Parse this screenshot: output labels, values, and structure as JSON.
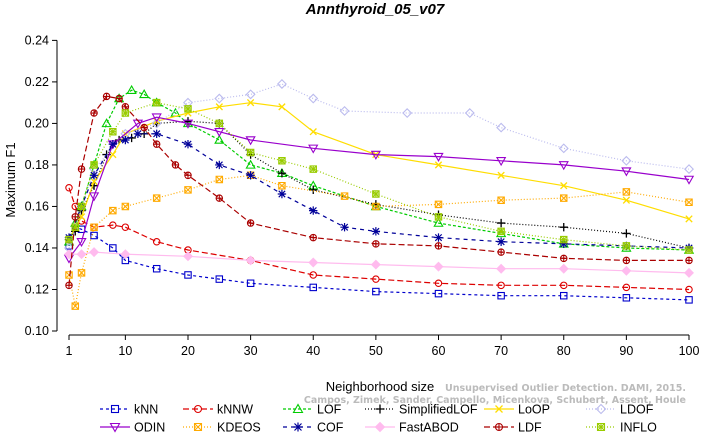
{
  "chart_data": {
    "type": "line",
    "title": "Annthyroid_05_v07",
    "xlabel": "Neighborhood size",
    "ylabel": "Maximum F1",
    "xlim": [
      1,
      100
    ],
    "ylim": [
      0.1,
      0.245
    ],
    "xticks": [
      1,
      10,
      20,
      30,
      40,
      50,
      60,
      70,
      80,
      90,
      100
    ],
    "yticks": [
      0.1,
      0.12,
      0.14,
      0.16,
      0.18,
      0.2,
      0.22,
      0.24
    ],
    "legend_position": "bottom",
    "series": [
      {
        "name": "kNN",
        "color": "#0000cc",
        "marker": "square",
        "dash": "3,3",
        "points": [
          [
            1,
            0.141
          ],
          [
            2,
            0.15
          ],
          [
            3,
            0.149
          ],
          [
            5,
            0.146
          ],
          [
            8,
            0.14
          ],
          [
            10,
            0.134
          ],
          [
            15,
            0.13
          ],
          [
            20,
            0.127
          ],
          [
            25,
            0.125
          ],
          [
            30,
            0.123
          ],
          [
            40,
            0.121
          ],
          [
            50,
            0.119
          ],
          [
            60,
            0.118
          ],
          [
            70,
            0.117
          ],
          [
            80,
            0.117
          ],
          [
            90,
            0.116
          ],
          [
            100,
            0.115
          ]
        ]
      },
      {
        "name": "kNNW",
        "color": "#dd0000",
        "marker": "circle",
        "dash": "6,3",
        "points": [
          [
            1,
            0.169
          ],
          [
            2,
            0.16
          ],
          [
            3,
            0.153
          ],
          [
            5,
            0.15
          ],
          [
            8,
            0.151
          ],
          [
            10,
            0.15
          ],
          [
            15,
            0.143
          ],
          [
            20,
            0.139
          ],
          [
            30,
            0.134
          ],
          [
            40,
            0.127
          ],
          [
            50,
            0.125
          ],
          [
            60,
            0.123
          ],
          [
            70,
            0.122
          ],
          [
            80,
            0.122
          ],
          [
            90,
            0.121
          ],
          [
            100,
            0.12
          ]
        ]
      },
      {
        "name": "LOF",
        "color": "#00cc00",
        "marker": "triangle",
        "dash": "3,2",
        "points": [
          [
            1,
            0.143
          ],
          [
            2,
            0.152
          ],
          [
            3,
            0.16
          ],
          [
            5,
            0.18
          ],
          [
            7,
            0.2
          ],
          [
            9,
            0.212
          ],
          [
            11,
            0.216
          ],
          [
            13,
            0.214
          ],
          [
            15,
            0.21
          ],
          [
            18,
            0.205
          ],
          [
            20,
            0.2
          ],
          [
            25,
            0.192
          ],
          [
            30,
            0.18
          ],
          [
            35,
            0.176
          ],
          [
            40,
            0.17
          ],
          [
            50,
            0.16
          ],
          [
            60,
            0.152
          ],
          [
            70,
            0.147
          ],
          [
            80,
            0.142
          ],
          [
            90,
            0.14
          ],
          [
            100,
            0.139
          ]
        ]
      },
      {
        "name": "SimplifiedLOF",
        "color": "#000000",
        "marker": "plus",
        "dash": "1,2",
        "points": [
          [
            1,
            0.144
          ],
          [
            2,
            0.148
          ],
          [
            3,
            0.158
          ],
          [
            5,
            0.17
          ],
          [
            7,
            0.185
          ],
          [
            9,
            0.192
          ],
          [
            11,
            0.193
          ],
          [
            13,
            0.195
          ],
          [
            15,
            0.2
          ],
          [
            20,
            0.201
          ],
          [
            25,
            0.2
          ],
          [
            30,
            0.185
          ],
          [
            35,
            0.176
          ],
          [
            40,
            0.168
          ],
          [
            50,
            0.161
          ],
          [
            60,
            0.156
          ],
          [
            70,
            0.152
          ],
          [
            80,
            0.15
          ],
          [
            90,
            0.147
          ],
          [
            100,
            0.14
          ]
        ]
      },
      {
        "name": "LoOP",
        "color": "#ffdd00",
        "marker": "x",
        "dash": "none",
        "points": [
          [
            1,
            0.144
          ],
          [
            3,
            0.155
          ],
          [
            5,
            0.172
          ],
          [
            8,
            0.185
          ],
          [
            10,
            0.195
          ],
          [
            15,
            0.201
          ],
          [
            20,
            0.205
          ],
          [
            25,
            0.208
          ],
          [
            30,
            0.21
          ],
          [
            35,
            0.208
          ],
          [
            40,
            0.196
          ],
          [
            50,
            0.185
          ],
          [
            60,
            0.18
          ],
          [
            70,
            0.175
          ],
          [
            80,
            0.17
          ],
          [
            90,
            0.163
          ],
          [
            100,
            0.154
          ]
        ]
      },
      {
        "name": "LDOF",
        "color": "#bbbbee",
        "marker": "diamond",
        "dash": "1,2",
        "points": [
          [
            1,
            0.14
          ],
          [
            5,
            0.178
          ],
          [
            10,
            0.195
          ],
          [
            15,
            0.2
          ],
          [
            20,
            0.21
          ],
          [
            25,
            0.212
          ],
          [
            30,
            0.214
          ],
          [
            35,
            0.219
          ],
          [
            40,
            0.212
          ],
          [
            45,
            0.206
          ],
          [
            55,
            0.205
          ],
          [
            65,
            0.205
          ],
          [
            70,
            0.198
          ],
          [
            80,
            0.188
          ],
          [
            90,
            0.182
          ],
          [
            100,
            0.178
          ]
        ]
      },
      {
        "name": "ODIN",
        "color": "#9900cc",
        "marker": "triangle-down",
        "dash": "none",
        "points": [
          [
            1,
            0.135
          ],
          [
            3,
            0.143
          ],
          [
            5,
            0.165
          ],
          [
            8,
            0.19
          ],
          [
            12,
            0.2
          ],
          [
            15,
            0.203
          ],
          [
            20,
            0.2
          ],
          [
            25,
            0.196
          ],
          [
            30,
            0.192
          ],
          [
            40,
            0.188
          ],
          [
            50,
            0.185
          ],
          [
            60,
            0.184
          ],
          [
            70,
            0.182
          ],
          [
            80,
            0.18
          ],
          [
            90,
            0.177
          ],
          [
            100,
            0.173
          ]
        ]
      },
      {
        "name": "KDEOS",
        "color": "#ffaa00",
        "marker": "boxed-x",
        "dash": "1,2",
        "points": [
          [
            1,
            0.127
          ],
          [
            2,
            0.112
          ],
          [
            3,
            0.128
          ],
          [
            5,
            0.15
          ],
          [
            8,
            0.158
          ],
          [
            10,
            0.16
          ],
          [
            15,
            0.164
          ],
          [
            20,
            0.168
          ],
          [
            25,
            0.173
          ],
          [
            30,
            0.175
          ],
          [
            35,
            0.17
          ],
          [
            45,
            0.165
          ],
          [
            50,
            0.16
          ],
          [
            60,
            0.161
          ],
          [
            70,
            0.163
          ],
          [
            80,
            0.164
          ],
          [
            90,
            0.167
          ],
          [
            100,
            0.162
          ]
        ]
      },
      {
        "name": "COF",
        "color": "#000099",
        "marker": "asterisk",
        "dash": "4,4",
        "points": [
          [
            1,
            0.145
          ],
          [
            3,
            0.16
          ],
          [
            5,
            0.175
          ],
          [
            8,
            0.19
          ],
          [
            10,
            0.192
          ],
          [
            12,
            0.195
          ],
          [
            15,
            0.195
          ],
          [
            20,
            0.19
          ],
          [
            25,
            0.18
          ],
          [
            30,
            0.175
          ],
          [
            35,
            0.166
          ],
          [
            40,
            0.158
          ],
          [
            45,
            0.15
          ],
          [
            50,
            0.148
          ],
          [
            60,
            0.145
          ],
          [
            70,
            0.143
          ],
          [
            80,
            0.142
          ],
          [
            90,
            0.141
          ],
          [
            100,
            0.14
          ]
        ]
      },
      {
        "name": "FastABOD",
        "color": "#ffbbee",
        "marker": "diamond-filled",
        "dash": "none",
        "points": [
          [
            1,
            0.137
          ],
          [
            3,
            0.137
          ],
          [
            5,
            0.138
          ],
          [
            10,
            0.137
          ],
          [
            20,
            0.136
          ],
          [
            30,
            0.134
          ],
          [
            40,
            0.133
          ],
          [
            50,
            0.132
          ],
          [
            60,
            0.131
          ],
          [
            70,
            0.13
          ],
          [
            80,
            0.13
          ],
          [
            90,
            0.129
          ],
          [
            100,
            0.128
          ]
        ]
      },
      {
        "name": "LDF",
        "color": "#aa0000",
        "marker": "circle-plus",
        "dash": "6,3",
        "points": [
          [
            1,
            0.122
          ],
          [
            2,
            0.155
          ],
          [
            3,
            0.178
          ],
          [
            5,
            0.205
          ],
          [
            7,
            0.213
          ],
          [
            9,
            0.212
          ],
          [
            10,
            0.208
          ],
          [
            13,
            0.198
          ],
          [
            15,
            0.19
          ],
          [
            18,
            0.18
          ],
          [
            20,
            0.175
          ],
          [
            25,
            0.164
          ],
          [
            30,
            0.152
          ],
          [
            40,
            0.145
          ],
          [
            50,
            0.142
          ],
          [
            60,
            0.141
          ],
          [
            70,
            0.138
          ],
          [
            80,
            0.135
          ],
          [
            90,
            0.134
          ],
          [
            100,
            0.134
          ]
        ]
      },
      {
        "name": "INFLO",
        "color": "#99cc00",
        "marker": "boxed-asterisk",
        "dash": "1,2",
        "points": [
          [
            1,
            0.144
          ],
          [
            2,
            0.15
          ],
          [
            3,
            0.16
          ],
          [
            5,
            0.18
          ],
          [
            8,
            0.196
          ],
          [
            10,
            0.205
          ],
          [
            15,
            0.21
          ],
          [
            20,
            0.207
          ],
          [
            25,
            0.2
          ],
          [
            30,
            0.186
          ],
          [
            35,
            0.182
          ],
          [
            40,
            0.178
          ],
          [
            50,
            0.166
          ],
          [
            60,
            0.155
          ],
          [
            70,
            0.148
          ],
          [
            80,
            0.144
          ],
          [
            90,
            0.141
          ],
          [
            100,
            0.139
          ]
        ]
      }
    ]
  },
  "watermark": {
    "line1": "Unsupervised Outlier Detection. DAMI, 2015.",
    "line2": "Campos, Zimek, Sander, Campello, Micenkova, Schubert, Assent, Houle"
  }
}
